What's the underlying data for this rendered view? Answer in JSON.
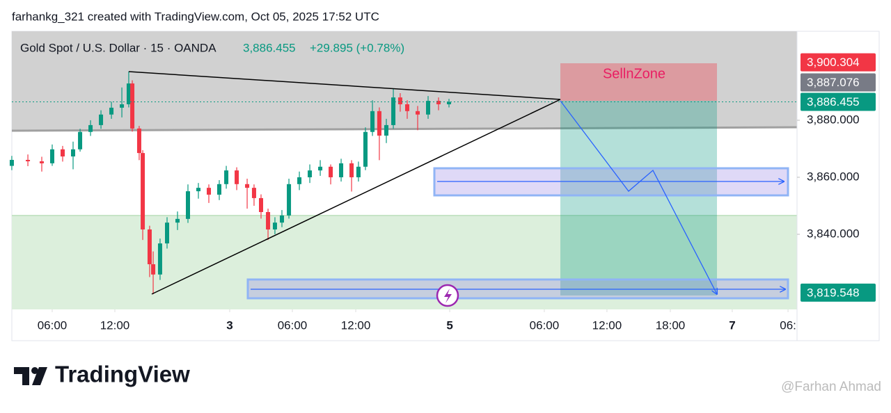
{
  "header": {
    "credit": "farhankg_321 created with TradingView.com, Oct 05, 2025 17:52 UTC"
  },
  "chart_data": {
    "type": "candlestick",
    "title": "Gold Spot / U.S. Dollar · 15 · OANDA",
    "last_price": "3,886.455",
    "change": "+29.895 (+0.78%)",
    "annotation": "SellnZone",
    "up_color": "#089981",
    "down_color": "#f23645",
    "x": [
      2.13,
      3.67,
      5,
      6,
      7,
      8,
      8.67,
      9.67,
      10.67,
      11.67,
      12.67,
      13.33,
      13.67,
      14.33,
      14.67,
      15.33,
      15.67,
      16.33,
      17,
      18,
      19,
      20,
      21,
      22,
      22.67,
      23.67,
      24.67,
      25.33,
      26,
      26.67,
      27.33,
      28,
      28.67,
      29.67,
      30.67,
      31.67,
      32.67,
      33.67,
      34.67,
      35.33,
      36,
      36.67,
      37.33,
      38,
      38.67,
      39.33,
      40,
      41,
      42,
      43,
      44
    ],
    "open": [
      3864.0,
      3866.1,
      3865.6,
      3864.9,
      3869.8,
      3867.3,
      3869.8,
      3875.9,
      3878.3,
      3882.0,
      3884.4,
      3885.6,
      3892.9,
      3877.1,
      3868.5,
      3841.7,
      3829.5,
      3825.9,
      3836.8,
      3844.1,
      3845.4,
      3855.1,
      3856.3,
      3853.9,
      3857.6,
      3862.4,
      3857.6,
      3856.3,
      3852.7,
      3847.8,
      3841.7,
      3844.1,
      3846.6,
      3857.6,
      3860.0,
      3862.4,
      3863.7,
      3860.0,
      3864.9,
      3860.0,
      3863.7,
      3875.9,
      3883.2,
      3874.6,
      3878.3,
      3888.0,
      3885.6,
      3883.2,
      3882.0,
      3886.8,
      3885.6
    ],
    "high": [
      3867.5,
      3868.0,
      3867.2,
      3871.5,
      3871.0,
      3872.5,
      3877.0,
      3880.0,
      3883.5,
      3886.5,
      3891.5,
      3897.1,
      3894.0,
      3878.0,
      3869.5,
      3843.0,
      3834.0,
      3838.5,
      3846.0,
      3848.0,
      3857.5,
      3858.0,
      3857.5,
      3859.0,
      3864.0,
      3863.5,
      3859.5,
      3857.5,
      3854.0,
      3849.0,
      3846.0,
      3848.5,
      3859.5,
      3862.0,
      3864.5,
      3866.0,
      3864.5,
      3866.5,
      3866.0,
      3865.5,
      3877.5,
      3887.0,
      3884.5,
      3880.5,
      3891.2,
      3889.5,
      3887.0,
      3885.0,
      3888.5,
      3888.0,
      3887.5
    ],
    "low": [
      3862.5,
      3863.9,
      3862.0,
      3864.0,
      3865.5,
      3862.8,
      3869.0,
      3874.5,
      3877.0,
      3880.5,
      3881.0,
      3884.5,
      3876.0,
      3866.0,
      3838.0,
      3825.0,
      3819.0,
      3824.0,
      3835.0,
      3841.5,
      3844.0,
      3852.5,
      3851.0,
      3852.0,
      3856.0,
      3855.5,
      3849.0,
      3850.0,
      3845.5,
      3838.0,
      3840.0,
      3842.5,
      3845.5,
      3855.5,
      3858.0,
      3860.5,
      3857.5,
      3858.5,
      3855.0,
      3858.5,
      3862.5,
      3874.5,
      3866.0,
      3872.0,
      3877.0,
      3883.0,
      3880.5,
      3876.5,
      3880.5,
      3883.5,
      3884.5
    ],
    "close": [
      3866.1,
      3865.6,
      3864.9,
      3869.8,
      3867.3,
      3869.8,
      3875.9,
      3878.3,
      3882.0,
      3884.4,
      3885.6,
      3892.9,
      3877.1,
      3868.5,
      3841.7,
      3829.5,
      3825.9,
      3836.8,
      3844.1,
      3845.4,
      3855.1,
      3856.3,
      3853.9,
      3857.6,
      3862.4,
      3857.6,
      3856.3,
      3852.7,
      3847.8,
      3841.7,
      3844.1,
      3846.6,
      3857.6,
      3860.0,
      3862.4,
      3863.7,
      3860.0,
      3864.9,
      3860.0,
      3863.7,
      3875.9,
      3883.2,
      3874.6,
      3878.3,
      3888.0,
      3885.6,
      3883.2,
      3882.0,
      3886.8,
      3885.6,
      3886.455
    ],
    "xlim": [
      2.133,
      77.333
    ],
    "xticks": [
      {
        "value": 6,
        "label": "06:00"
      },
      {
        "value": 12,
        "label": "12:00"
      },
      {
        "value": 23,
        "label": "3",
        "bold": true
      },
      {
        "value": 29,
        "label": "06:00"
      },
      {
        "value": 35.07,
        "label": "12:00"
      },
      {
        "value": 44.07,
        "label": "5",
        "bold": true
      },
      {
        "value": 53.13,
        "label": "06:00"
      },
      {
        "value": 59.13,
        "label": "12:00"
      },
      {
        "value": 65.2,
        "label": "18:00"
      },
      {
        "value": 71.13,
        "label": "7",
        "bold": true
      },
      {
        "value": 76.47,
        "label": "06:"
      }
    ],
    "ylim": [
      3813.66,
      3911.2
    ],
    "yticks": [
      {
        "value": 3880,
        "label": "3,880.000"
      },
      {
        "value": 3860,
        "label": "3,860.000"
      },
      {
        "value": 3840,
        "label": "3,840.000"
      }
    ],
    "price_tags": [
      {
        "value": 3900.304,
        "label": "3,900.304",
        "color": "#f23645"
      },
      {
        "value": 3887.076,
        "label": "3,887.076",
        "color": "#787b86"
      },
      {
        "value": 3886.455,
        "label": "3,886.455",
        "color": "#089981"
      },
      {
        "value": 3819.548,
        "label": "3,819.548",
        "color": "#089981"
      }
    ]
  },
  "footer": {
    "logo_text": "TradingView",
    "watermark": "@Farhan Ahmad"
  }
}
